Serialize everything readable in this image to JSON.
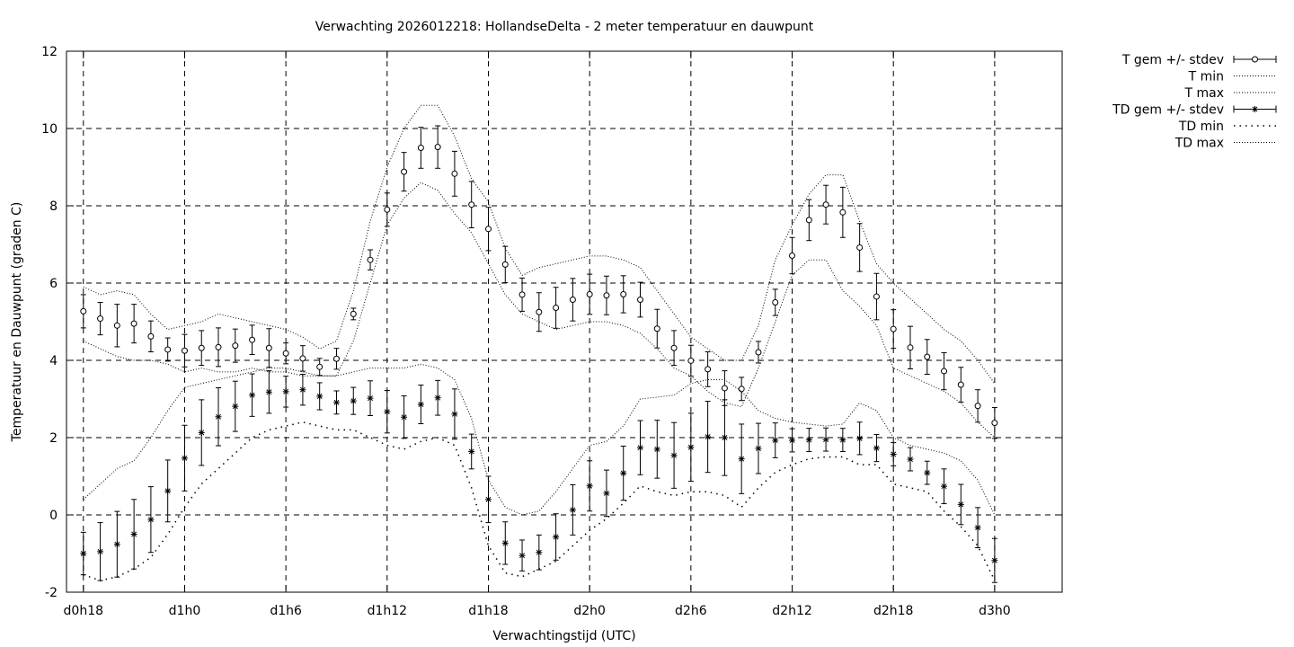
{
  "chart_data": {
    "type": "line",
    "title": "Verwachting 2026012218: HollandseDelta - 2 meter temperatuur en dauwpunt",
    "xlabel": "Verwachtingstijd (UTC)",
    "ylabel": "Temperatuur en Dauwpunt (graden C)",
    "xlim": [
      -1,
      58
    ],
    "ylim": [
      -2,
      12
    ],
    "yticks": [
      -2,
      0,
      2,
      4,
      6,
      8,
      10,
      12
    ],
    "xticks": [
      {
        "x": 0,
        "label": "d0h18"
      },
      {
        "x": 6,
        "label": "d1h0"
      },
      {
        "x": 12,
        "label": "d1h6"
      },
      {
        "x": 18,
        "label": "d1h12"
      },
      {
        "x": 24,
        "label": "d1h18"
      },
      {
        "x": 30,
        "label": "d2h0"
      },
      {
        "x": 36,
        "label": "d2h6"
      },
      {
        "x": 42,
        "label": "d2h12"
      },
      {
        "x": 48,
        "label": "d2h18"
      },
      {
        "x": 54,
        "label": "d3h0"
      }
    ],
    "grid": true,
    "legend_position": "outside-top-right",
    "series": [
      {
        "name": "T gem +/- stdev",
        "style": "errorbars-circle",
        "x": [
          0,
          1,
          2,
          3,
          4,
          5,
          6,
          7,
          8,
          9,
          10,
          11,
          12,
          13,
          14,
          15,
          16,
          17,
          18,
          19,
          20,
          21,
          22,
          23,
          24,
          25,
          26,
          27,
          28,
          29,
          30,
          31,
          32,
          33,
          34,
          35,
          36,
          37,
          38,
          39,
          40,
          41,
          42,
          43,
          44,
          45,
          46,
          47,
          48,
          49,
          50,
          51,
          52,
          53,
          54
        ],
        "y": [
          5.27,
          5.08,
          4.9,
          4.95,
          4.62,
          4.28,
          4.25,
          4.32,
          4.34,
          4.38,
          4.53,
          4.32,
          4.18,
          4.05,
          3.83,
          4.04,
          5.2,
          6.6,
          7.9,
          8.88,
          9.5,
          9.52,
          8.83,
          8.03,
          7.4,
          6.48,
          5.7,
          5.25,
          5.36,
          5.57,
          5.71,
          5.68,
          5.71,
          5.57,
          4.82,
          4.32,
          3.99,
          3.77,
          3.28,
          3.26,
          4.21,
          5.5,
          6.71,
          7.63,
          8.03,
          7.83,
          6.92,
          5.65,
          4.81,
          4.33,
          4.09,
          3.72,
          3.37,
          2.82,
          2.38
        ],
        "stdev": [
          0.43,
          0.42,
          0.55,
          0.5,
          0.4,
          0.3,
          0.42,
          0.45,
          0.5,
          0.43,
          0.38,
          0.5,
          0.27,
          0.33,
          0.22,
          0.27,
          0.15,
          0.26,
          0.43,
          0.5,
          0.53,
          0.55,
          0.58,
          0.6,
          0.56,
          0.47,
          0.43,
          0.5,
          0.53,
          0.55,
          0.52,
          0.5,
          0.48,
          0.45,
          0.5,
          0.45,
          0.4,
          0.45,
          0.45,
          0.3,
          0.28,
          0.34,
          0.47,
          0.53,
          0.5,
          0.65,
          0.62,
          0.6,
          0.5,
          0.55,
          0.45,
          0.48,
          0.45,
          0.42,
          0.4
        ]
      },
      {
        "name": "T min",
        "style": "dotted-fine",
        "x": [
          0,
          1,
          2,
          3,
          4,
          5,
          6,
          7,
          8,
          9,
          10,
          11,
          12,
          13,
          14,
          15,
          16,
          17,
          18,
          19,
          20,
          21,
          22,
          23,
          24,
          25,
          26,
          27,
          28,
          29,
          30,
          31,
          32,
          33,
          34,
          35,
          36,
          37,
          38,
          39,
          40,
          41,
          42,
          43,
          44,
          45,
          46,
          47,
          48,
          49,
          50,
          51,
          52,
          53,
          54
        ],
        "y": [
          4.5,
          4.3,
          4.1,
          4.0,
          4.0,
          3.9,
          3.7,
          3.8,
          3.7,
          3.7,
          3.8,
          3.7,
          3.7,
          3.6,
          3.6,
          3.6,
          4.5,
          6.0,
          7.5,
          8.2,
          8.6,
          8.4,
          7.8,
          7.3,
          6.5,
          5.7,
          5.2,
          5.0,
          4.8,
          4.9,
          5.0,
          5.0,
          4.9,
          4.7,
          4.3,
          3.8,
          3.6,
          3.2,
          2.9,
          2.8,
          3.8,
          5.0,
          6.2,
          6.6,
          6.6,
          5.8,
          5.4,
          4.9,
          3.8,
          3.6,
          3.4,
          3.2,
          2.9,
          2.4,
          2.0
        ]
      },
      {
        "name": "T max",
        "style": "dotted-fine",
        "x": [
          0,
          1,
          2,
          3,
          4,
          5,
          6,
          7,
          8,
          9,
          10,
          11,
          12,
          13,
          14,
          15,
          16,
          17,
          18,
          19,
          20,
          21,
          22,
          23,
          24,
          25,
          26,
          27,
          28,
          29,
          30,
          31,
          32,
          33,
          34,
          35,
          36,
          37,
          38,
          39,
          40,
          41,
          42,
          43,
          44,
          45,
          46,
          47,
          48,
          49,
          50,
          51,
          52,
          53,
          54
        ],
        "y": [
          5.9,
          5.7,
          5.8,
          5.7,
          5.2,
          4.8,
          4.9,
          5.0,
          5.2,
          5.1,
          5.0,
          4.9,
          4.8,
          4.6,
          4.3,
          4.5,
          5.8,
          7.6,
          9.0,
          10.0,
          10.6,
          10.6,
          9.8,
          8.7,
          8.1,
          6.9,
          6.2,
          6.4,
          6.5,
          6.6,
          6.7,
          6.7,
          6.6,
          6.4,
          5.8,
          5.2,
          4.6,
          4.3,
          4.0,
          4.0,
          4.9,
          6.6,
          7.5,
          8.3,
          8.8,
          8.8,
          7.6,
          6.5,
          6.0,
          5.6,
          5.2,
          4.8,
          4.5,
          4.0,
          3.4
        ]
      },
      {
        "name": "TD gem +/- stdev",
        "style": "errorbars-star",
        "x": [
          0,
          1,
          2,
          3,
          4,
          5,
          6,
          7,
          8,
          9,
          10,
          11,
          12,
          13,
          14,
          15,
          16,
          17,
          18,
          19,
          20,
          21,
          22,
          23,
          24,
          25,
          26,
          27,
          28,
          29,
          30,
          31,
          32,
          33,
          34,
          35,
          36,
          37,
          38,
          39,
          40,
          41,
          42,
          43,
          44,
          45,
          46,
          47,
          48,
          49,
          50,
          51,
          52,
          53,
          54
        ],
        "y": [
          -1.0,
          -0.95,
          -0.76,
          -0.5,
          -0.12,
          0.62,
          1.47,
          2.13,
          2.54,
          2.81,
          3.1,
          3.18,
          3.19,
          3.24,
          3.07,
          2.91,
          2.95,
          3.02,
          2.67,
          2.53,
          2.86,
          3.03,
          2.61,
          1.64,
          0.4,
          -0.73,
          -1.05,
          -0.97,
          -0.57,
          0.13,
          0.75,
          0.56,
          1.08,
          1.74,
          1.7,
          1.54,
          1.75,
          2.02,
          2.0,
          1.45,
          1.72,
          1.93,
          1.93,
          1.94,
          1.95,
          1.94,
          1.98,
          1.73,
          1.57,
          1.44,
          1.09,
          0.74,
          0.27,
          -0.33,
          -1.18
        ],
        "stdev": [
          0.55,
          0.75,
          0.85,
          0.9,
          0.85,
          0.8,
          0.85,
          0.85,
          0.75,
          0.65,
          0.55,
          0.55,
          0.4,
          0.4,
          0.35,
          0.3,
          0.35,
          0.45,
          0.55,
          0.55,
          0.5,
          0.45,
          0.65,
          0.45,
          0.6,
          0.55,
          0.4,
          0.45,
          0.6,
          0.65,
          0.65,
          0.6,
          0.7,
          0.7,
          0.75,
          0.85,
          0.88,
          0.92,
          0.98,
          0.9,
          0.65,
          0.45,
          0.3,
          0.3,
          0.3,
          0.3,
          0.42,
          0.35,
          0.3,
          0.3,
          0.3,
          0.45,
          0.52,
          0.52,
          0.57
        ]
      },
      {
        "name": "TD min",
        "style": "dotted-coarse",
        "x": [
          0,
          1,
          2,
          3,
          4,
          5,
          6,
          7,
          8,
          9,
          10,
          11,
          12,
          13,
          14,
          15,
          16,
          17,
          18,
          19,
          20,
          21,
          22,
          23,
          24,
          25,
          26,
          27,
          28,
          29,
          30,
          31,
          32,
          33,
          34,
          35,
          36,
          37,
          38,
          39,
          40,
          41,
          42,
          43,
          44,
          45,
          46,
          47,
          48,
          49,
          50,
          51,
          52,
          53,
          54
        ],
        "y": [
          -1.55,
          -1.7,
          -1.6,
          -1.4,
          -1.1,
          -0.5,
          0.2,
          0.8,
          1.2,
          1.6,
          2.0,
          2.2,
          2.3,
          2.4,
          2.3,
          2.2,
          2.2,
          2.0,
          1.8,
          1.7,
          1.9,
          2.0,
          1.8,
          0.7,
          -0.8,
          -1.5,
          -1.6,
          -1.4,
          -1.2,
          -0.8,
          -0.4,
          -0.1,
          0.3,
          0.75,
          0.6,
          0.5,
          0.6,
          0.6,
          0.5,
          0.2,
          0.7,
          1.1,
          1.3,
          1.45,
          1.5,
          1.5,
          1.3,
          1.3,
          0.8,
          0.7,
          0.6,
          0.1,
          -0.3,
          -0.8,
          -1.7
        ]
      },
      {
        "name": "TD max",
        "style": "dotted-fine",
        "x": [
          0,
          1,
          2,
          3,
          4,
          5,
          6,
          7,
          8,
          9,
          10,
          11,
          12,
          13,
          14,
          15,
          16,
          17,
          18,
          19,
          20,
          21,
          22,
          23,
          24,
          25,
          26,
          27,
          28,
          29,
          30,
          31,
          32,
          33,
          34,
          35,
          36,
          37,
          38,
          39,
          40,
          41,
          42,
          43,
          44,
          45,
          46,
          47,
          48,
          49,
          50,
          51,
          52,
          53,
          54
        ],
        "y": [
          0.4,
          0.8,
          1.2,
          1.4,
          2.0,
          2.7,
          3.3,
          3.4,
          3.5,
          3.6,
          3.7,
          3.8,
          3.8,
          3.7,
          3.6,
          3.6,
          3.7,
          3.8,
          3.8,
          3.8,
          3.9,
          3.8,
          3.5,
          2.5,
          0.9,
          0.2,
          0.0,
          0.1,
          0.6,
          1.2,
          1.8,
          1.9,
          2.3,
          3.0,
          3.05,
          3.1,
          3.4,
          3.5,
          3.5,
          3.2,
          2.7,
          2.5,
          2.4,
          2.35,
          2.3,
          2.35,
          2.9,
          2.7,
          2.0,
          1.8,
          1.7,
          1.6,
          1.4,
          0.9,
          0.0
        ]
      }
    ]
  }
}
